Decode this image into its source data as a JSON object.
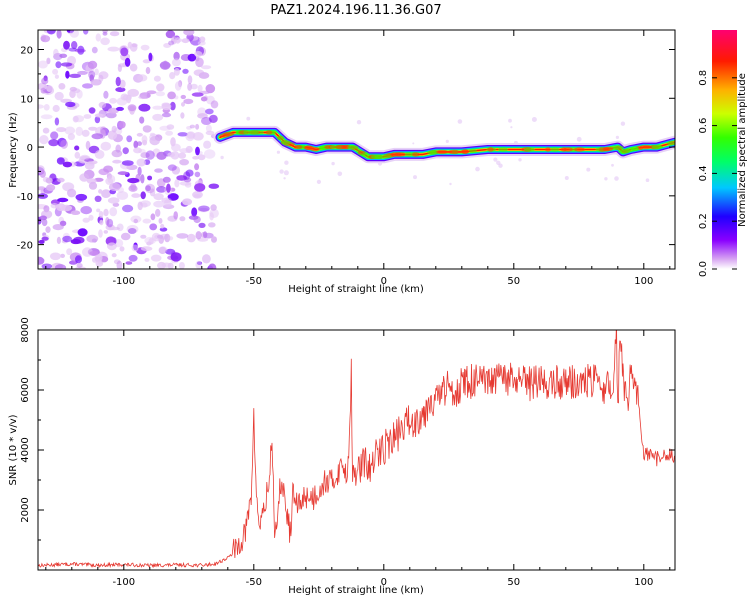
{
  "title": "PAZ1.2024.196.11.36.G07",
  "chart_data": [
    {
      "type": "heatmap",
      "xlabel": "Height of straight line (km)",
      "ylabel": "Frequency (Hz)",
      "xlim": [
        -133,
        112
      ],
      "ylim": [
        -25,
        24
      ],
      "xticks": [
        -100,
        -50,
        0,
        50,
        100
      ],
      "yticks": [
        -20,
        -10,
        0,
        10,
        20
      ],
      "noise_region_x": [
        -133,
        -65
      ],
      "ridge": {
        "x": [
          -63,
          -58,
          -54,
          -50,
          -46,
          -42,
          -38,
          -34,
          -30,
          -26,
          -22,
          -18,
          -15,
          -12,
          -9,
          -6,
          -3,
          0,
          4,
          8,
          15,
          20,
          30,
          40,
          50,
          60,
          70,
          80,
          85,
          90,
          92,
          95,
          100,
          105,
          112
        ],
        "y": [
          2,
          3,
          3,
          3,
          3,
          3,
          1,
          0,
          0,
          -0.5,
          0,
          0,
          0,
          0,
          -1,
          -2,
          -2,
          -2,
          -1.5,
          -1.5,
          -1.5,
          -1,
          -1,
          -0.5,
          -0.5,
          -0.5,
          -0.5,
          -0.5,
          -0.5,
          0,
          -1,
          -0.5,
          0,
          0,
          1
        ]
      },
      "colorbar": {
        "label": "Normalized spectral amplitude",
        "ticks": [
          0.0,
          0.2,
          0.4,
          0.6,
          0.8
        ],
        "range": [
          0,
          1
        ],
        "colormap": "rainbow"
      }
    },
    {
      "type": "line",
      "xlabel": "Height of straight line (km)",
      "ylabel": "SNR (10 * v/v)",
      "xlim": [
        -133,
        112
      ],
      "ylim": [
        0,
        8000
      ],
      "xticks": [
        -100,
        -50,
        0,
        50,
        100
      ],
      "yticks": [
        2000,
        4000,
        6000,
        8000
      ],
      "series": [
        {
          "color": "#e63a32",
          "x": [
            -133,
            -120,
            -110,
            -100,
            -90,
            -80,
            -70,
            -65,
            -60,
            -57,
            -55,
            -53,
            -51,
            -50,
            -49,
            -48,
            -46,
            -44,
            -43,
            -42,
            -41,
            -40,
            -38,
            -36,
            -35,
            -33,
            -30,
            -27,
            -25,
            -22,
            -20,
            -18,
            -16,
            -14,
            -13,
            -12.5,
            -12,
            -11,
            -9,
            -7,
            -5,
            -3,
            -1,
            1,
            3,
            5,
            8,
            10,
            12,
            14,
            16,
            18,
            20,
            22,
            25,
            28,
            30,
            35,
            40,
            45,
            50,
            55,
            60,
            65,
            70,
            75,
            80,
            85,
            88,
            89.5,
            90,
            91,
            92,
            93,
            94,
            95,
            96,
            97,
            98,
            99,
            100,
            102,
            105,
            108,
            112
          ],
          "y": [
            150,
            200,
            160,
            180,
            150,
            170,
            160,
            200,
            400,
            650,
            1000,
            1300,
            2500,
            5000,
            2500,
            1500,
            2000,
            3000,
            4500,
            1400,
            1100,
            3000,
            2300,
            1200,
            2500,
            2100,
            2500,
            2400,
            2700,
            3000,
            2900,
            3200,
            3500,
            3200,
            5000,
            6700,
            3000,
            3200,
            3400,
            3600,
            3300,
            3800,
            4000,
            4200,
            4300,
            4500,
            4800,
            5000,
            4900,
            5200,
            5300,
            5800,
            5600,
            5900,
            6100,
            6000,
            6200,
            6300,
            6200,
            6400,
            6300,
            6200,
            6300,
            6200,
            6300,
            6200,
            6300,
            6100,
            6000,
            8000,
            5500,
            8000,
            6500,
            5800,
            5500,
            6500,
            5900,
            6000,
            5800,
            4300,
            3900,
            3800,
            3700,
            3800,
            3800
          ]
        }
      ]
    }
  ]
}
